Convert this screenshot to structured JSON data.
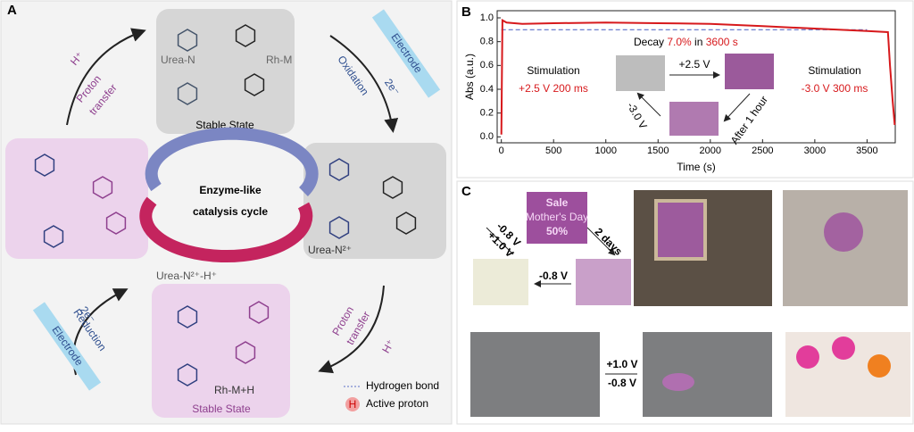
{
  "panel_a": {
    "label": "A",
    "proton_symbol": "H",
    "top": {
      "state": "Stable State",
      "urea": "Urea-N",
      "rh": "Rh-M"
    },
    "right": {
      "urea": "Urea-N²⁺"
    },
    "bottom": {
      "state": "Stable State",
      "urea": "Urea-N²⁺-H⁺",
      "rh": "Rh-M+H"
    },
    "cycle": [
      "Enzyme-like",
      "catalysis cycle"
    ],
    "steps": {
      "proton_transfer_1": {
        "label": [
          "Proton",
          "transfer"
        ],
        "ion": "H⁺"
      },
      "oxidation": {
        "label": "Oxidation",
        "electrode": "Electrode",
        "electrons": "2e⁻"
      },
      "proton_transfer_2": {
        "label": [
          "Proton",
          "transfer"
        ],
        "ion": "H⁺"
      },
      "reduction": {
        "label": "Reduction",
        "electrode": "Electrode",
        "electrons": "2e⁻"
      }
    },
    "legend": [
      "Hydrogen bond",
      "Active proton"
    ]
  },
  "chart_data": {
    "type": "line",
    "panel_label": "B",
    "x_label": "Time (s)",
    "y_label": "Abs (a.u.)",
    "x": [
      0,
      10,
      50,
      200,
      500,
      1000,
      1500,
      2000,
      2500,
      3000,
      3500,
      3700,
      3720,
      3745,
      3765
    ],
    "series": [
      {
        "name": "Abs",
        "color": "#d7191c",
        "values": [
          0.02,
          0.98,
          0.96,
          0.95,
          0.955,
          0.96,
          0.955,
          0.95,
          0.93,
          0.91,
          0.89,
          0.88,
          0.6,
          0.3,
          0.1
        ]
      }
    ],
    "reference_line": {
      "y": 0.9,
      "color": "#5b6fc7"
    },
    "xlim": [
      -40,
      3770
    ],
    "ylim": [
      -0.05,
      1.06
    ],
    "xticks": [
      0,
      500,
      1000,
      1500,
      2000,
      2500,
      3000,
      3500
    ],
    "yticks": [
      {
        "value": 0,
        "label": "0.0"
      },
      0.2,
      0.4,
      0.6,
      {
        "value": 0.8,
        "label": "0.8"
      },
      {
        "value": 1,
        "label": "1.0"
      }
    ],
    "annotations": {
      "stim_on": [
        "Stimulation",
        "+2.5 V 200 ms"
      ],
      "decay": [
        "Decay ",
        "7.0%",
        " in ",
        "3600 s"
      ],
      "on_voltage": "+2.5 V",
      "off_voltage": "-3.0 V",
      "after": "After 1 hour",
      "stim_off": [
        "Stimulation",
        "-3.0 V 300 ms"
      ]
    }
  },
  "panel_c": {
    "label": "C",
    "sign": [
      "Sale",
      "Mother's Day",
      "50%"
    ],
    "forward": "+1.0 V",
    "back": "-0.8 V",
    "wait": "2 days",
    "erase": "-0.8 V",
    "glasses_on": "+1.0 V",
    "glasses_off": "-0.8 V"
  }
}
